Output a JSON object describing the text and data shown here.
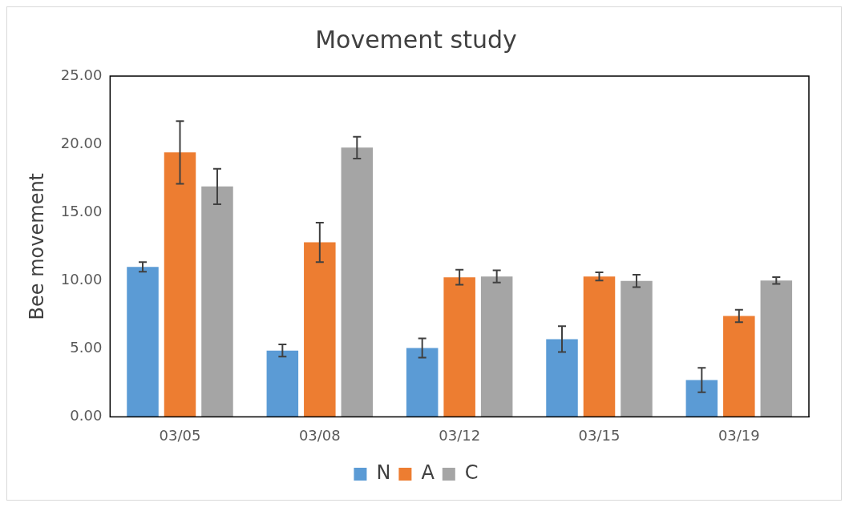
{
  "chart_data": {
    "type": "bar",
    "title": "Movement study",
    "ylabel": "Bee movement",
    "categories": [
      "03/05",
      "03/08",
      "03/12",
      "03/15",
      "03/19"
    ],
    "series": [
      {
        "name": "N",
        "color": "#5b9bd5",
        "values": [
          11.0,
          4.86,
          5.05,
          5.7,
          2.7
        ],
        "errors": [
          0.35,
          0.45,
          0.7,
          0.95,
          0.9
        ]
      },
      {
        "name": "A",
        "color": "#ed7d31",
        "values": [
          19.4,
          12.8,
          10.24,
          10.3,
          7.4
        ],
        "errors": [
          2.3,
          1.45,
          0.55,
          0.3,
          0.45
        ]
      },
      {
        "name": "C",
        "color": "#a5a5a5",
        "values": [
          16.9,
          19.75,
          10.3,
          9.97,
          10.0
        ],
        "errors": [
          1.3,
          0.8,
          0.45,
          0.45,
          0.25
        ]
      }
    ],
    "ylim": [
      0,
      25
    ],
    "yticks": [
      {
        "value": 0,
        "label": "0.00"
      },
      {
        "value": 5,
        "label": "5.00"
      },
      {
        "value": 10,
        "label": "10.00"
      },
      {
        "value": 15,
        "label": "15.00"
      },
      {
        "value": 20,
        "label": "20.00"
      },
      {
        "value": 25,
        "label": "25.00"
      }
    ],
    "grid": false,
    "legend": "bottom"
  }
}
